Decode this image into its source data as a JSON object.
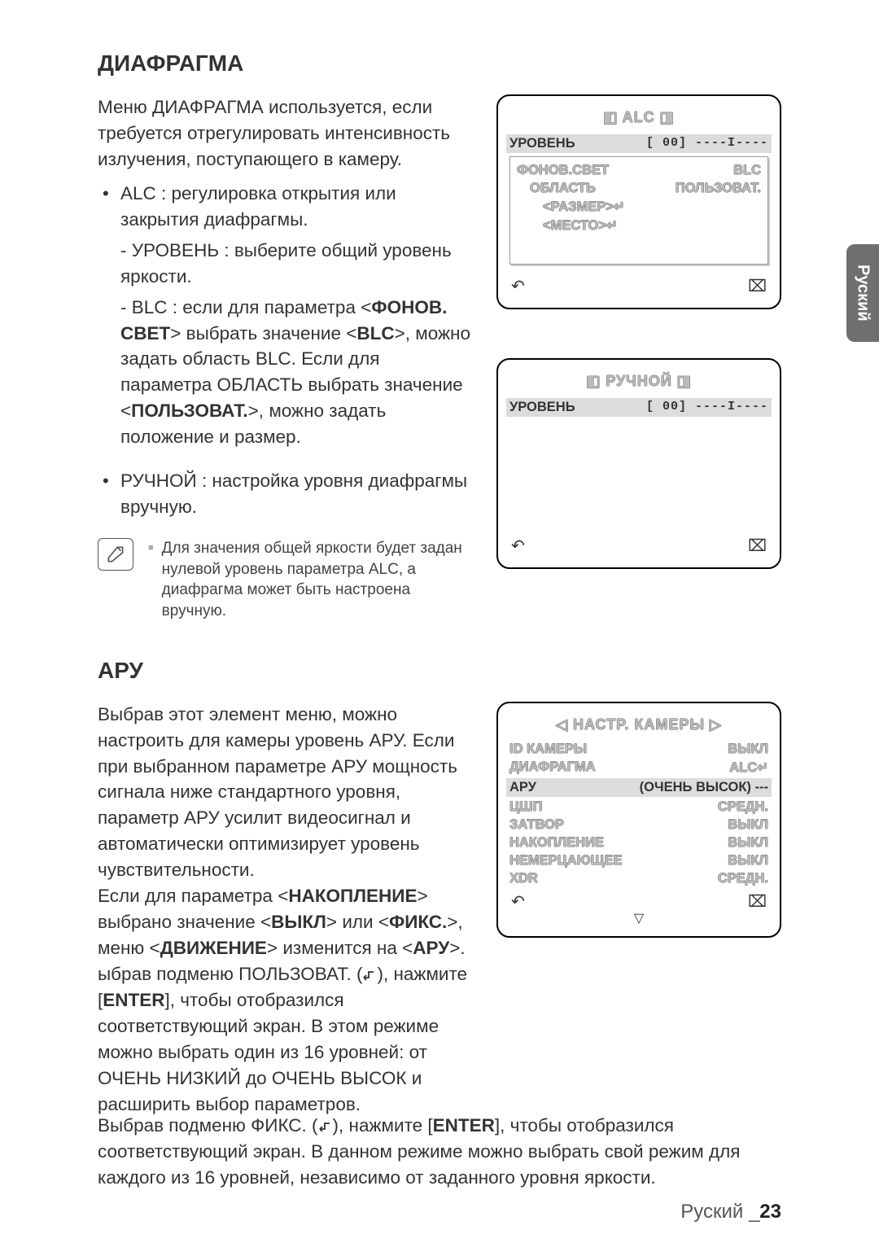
{
  "sections": {
    "diaphragm": {
      "title": "ДИАФРАГМА",
      "intro": "Меню ДИАФРАГМА используется, если требуется отрегулировать интенсивность излучения, поступающего в камеру.",
      "alc_bullet": "ALC : регулировка открытия или закрытия диафрагмы.",
      "alc_level": "- УРОВЕНЬ : выберите общий уровень яркости.",
      "alc_blc_1": "- BLC : если для параметра <",
      "alc_blc_fonov": "ФОНОВ. СВЕТ",
      "alc_blc_2": "> выбрать значение <",
      "alc_blc_blc": "BLC",
      "alc_blc_3": ">, можно задать область BLC. Если для параметра ОБЛАСТЬ выбрать значение <",
      "alc_blc_polz": "ПОЛЬЗОВАТ.",
      "alc_blc_4": ">, можно задать положение и размер.",
      "manual_bullet": "РУЧНОЙ : настройка уровня диафрагмы вручную.",
      "note": "Для значения общей яркости будет задан нулевой уровень параметра ALC, а диафрагма может быть настроена вручную."
    },
    "aru": {
      "title": "АРУ",
      "p1": "Выбрав этот элемент меню, можно настроить для камеры уровень АРУ. Если при выбранном параметре АРУ мощность сигнала ниже стандартного уровня, параметр АРУ усилит видеосигнал и автоматически оптимизирует уровень чувствительности.",
      "p2a": "Если для параметра <",
      "p2_nakop": "НАКОПЛЕНИЕ",
      "p2b": "> выбрано значение <",
      "p2_vykl": "ВЫКЛ",
      "p2c": "> или <",
      "p2_fiks": "ФИКС.",
      "p2d": ">, меню <",
      "p2_dvij": "ДВИЖЕНИЕ",
      "p2e": "> изменится на <",
      "p2_aru": "АРУ",
      "p2f": ">.",
      "p3a": "ыбрав подменю ПОЛЬЗОВАТ. (",
      "p3b": "), нажмите [",
      "p3_enter": "ENTER",
      "p3c": "], чтобы отобразился соответствующий экран. В этом режиме можно выбрать один из 16 уровней: от ОЧЕНЬ НИЗКИЙ до ОЧЕНЬ ВЫСОК и расширить выбор параметров.",
      "p4a": "Выбрав подменю ФИКС. (",
      "p4b": "), нажмите [",
      "p4_enter": "ENTER",
      "p4c": "], чтобы отобразился соответствующий экран. В данном режиме можно выбрать свой режим для каждого из 16 уровней, независимо от заданного уровня яркости."
    }
  },
  "lcd": {
    "alc": {
      "title": "◧ ALC ◨",
      "level_l": "УРОВЕНЬ",
      "level_r": "[  00] ----I----",
      "fonov": "ФОНОВ.СВЕТ",
      "fonov_r": "BLC",
      "area": "ОБЛАСТЬ",
      "area_r": "ПОЛЬЗОВАТ.",
      "size": "<РАЗМЕР>↵",
      "place": "<МЕСТО>↵"
    },
    "manual": {
      "title": "◧ РУЧНОЙ ◨",
      "level_l": "УРОВЕНЬ",
      "level_r": "[  00] ----I----"
    },
    "camera": {
      "title": "◁ НАСТР. КАМЕРЫ ▷",
      "rows": [
        {
          "l": "ID КАМЕРЫ",
          "r": "ВЫКЛ",
          "dim": true
        },
        {
          "l": "ДИАФРАГМА",
          "r": "ALC↵",
          "dim": true
        },
        {
          "l": "АРУ",
          "r": "(ОЧЕНЬ ВЫСОК) ---",
          "hl": true
        },
        {
          "l": "ЦШП",
          "r": "СРЕДН.",
          "dim": true
        },
        {
          "l": "ЗАТВОР",
          "r": "ВЫКЛ",
          "dim": true
        },
        {
          "l": "НАКОПЛЕНИЕ",
          "r": "ВЫКЛ",
          "dim": true
        },
        {
          "l": "НЕМЕРЦАЮЩЕЕ",
          "r": "ВЫКЛ",
          "dim": true
        },
        {
          "l": "XDR",
          "r": "СРЕДН.",
          "dim": true
        }
      ]
    },
    "footer_back": "↶",
    "footer_close": "⌧",
    "arrow_down": "▽"
  },
  "sideTab": "Руский",
  "footer": {
    "lang": "Руский _",
    "page": "23"
  }
}
